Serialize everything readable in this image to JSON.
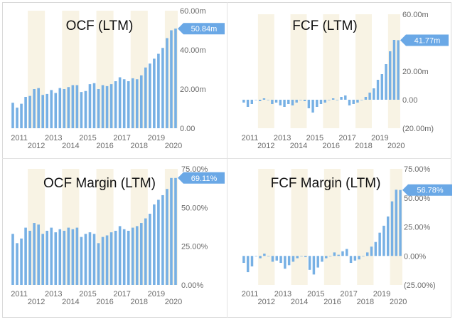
{
  "colors": {
    "bar": "#77b0e4",
    "band": "#f8f3e4",
    "badge": "#6aa8e6",
    "axis_text": "#6a6a6a",
    "title_text": "#111111"
  },
  "chart_data": [
    {
      "type": "bar",
      "title": "OCF (LTM)",
      "y_ticks": [
        "60.00m",
        "40.00m",
        "20.00m",
        "0.00"
      ],
      "ylim": [
        0,
        60
      ],
      "x_ticks_top": [
        "2011",
        "2013",
        "2015",
        "2017",
        "2019"
      ],
      "x_ticks_bottom": [
        "2012",
        "2014",
        "2016",
        "2018",
        "2020"
      ],
      "x_start": 2010.5,
      "last_value_label": "50.84m",
      "values": [
        13,
        10.5,
        12.5,
        16,
        16.5,
        20,
        20.5,
        17,
        17.5,
        19.5,
        18,
        20.5,
        20,
        21,
        22,
        22,
        18.5,
        19,
        22.5,
        23,
        20,
        22,
        21.5,
        22.5,
        24,
        26,
        25,
        24,
        25.5,
        25,
        27,
        31,
        33,
        35.5,
        38,
        41,
        46,
        50,
        50.84
      ]
    },
    {
      "type": "bar",
      "title": "FCF (LTM)",
      "y_ticks": [
        "60.00m",
        "20.00m",
        "0.00",
        "(20.00m)"
      ],
      "ylim": [
        -20,
        60
      ],
      "x_ticks_top": [
        "2011",
        "2013",
        "2015",
        "2017",
        "2019"
      ],
      "x_ticks_bottom": [
        "2012",
        "2014",
        "2016",
        "2018",
        "2020"
      ],
      "x_start": 2010.5,
      "last_value_label": "41.77m",
      "values": [
        -2,
        -5,
        -3,
        0,
        -1,
        1,
        0,
        -3,
        -2,
        -4,
        -5,
        -3,
        -4,
        -2,
        0,
        -1,
        -6,
        -9,
        -5,
        -3,
        -2,
        0,
        1,
        0,
        2,
        3,
        -4,
        -3,
        -2,
        0,
        2,
        5,
        8,
        14,
        18,
        25,
        34,
        42,
        41.77
      ]
    },
    {
      "type": "bar",
      "title": "OCF Margin (LTM)",
      "y_ticks": [
        "75.00%",
        "50.00%",
        "25.00%",
        "0.00%"
      ],
      "ylim": [
        0,
        75
      ],
      "x_ticks_top": [
        "2011",
        "2013",
        "2015",
        "2017",
        "2019"
      ],
      "x_ticks_bottom": [
        "2012",
        "2014",
        "2016",
        "2018",
        "2020"
      ],
      "x_start": 2010.5,
      "last_value_label": "69.11%",
      "values": [
        33,
        27,
        30,
        37,
        35,
        40,
        39,
        33,
        35,
        37,
        34,
        36,
        35,
        37,
        36,
        37,
        31,
        33,
        34,
        33,
        27,
        31,
        32,
        34,
        35,
        38,
        36,
        35,
        37,
        38,
        40,
        43,
        46,
        52,
        55,
        58,
        62,
        69.11,
        69.11
      ]
    },
    {
      "type": "bar",
      "title": "FCF Margin (LTM)",
      "y_ticks": [
        "75.00%",
        "50.00%",
        "25.00%",
        "0.00%",
        "(25.00%)"
      ],
      "ylim": [
        -25,
        75
      ],
      "x_ticks_top": [
        "2011",
        "2013",
        "2015",
        "2017",
        "2019"
      ],
      "x_ticks_bottom": [
        "2012",
        "2014",
        "2016",
        "2018",
        "2020"
      ],
      "x_start": 2010.5,
      "last_value_label": "56.78%",
      "values": [
        -6,
        -14,
        -9,
        0,
        -2,
        2,
        0,
        -5,
        -4,
        -6,
        -11,
        -8,
        -5,
        -2,
        0,
        -1,
        -12,
        -16,
        -10,
        -5,
        -2,
        0,
        3,
        1,
        4,
        6,
        -6,
        -4,
        -3,
        0,
        3,
        8,
        12,
        20,
        26,
        34,
        47,
        57,
        56.78
      ]
    }
  ]
}
